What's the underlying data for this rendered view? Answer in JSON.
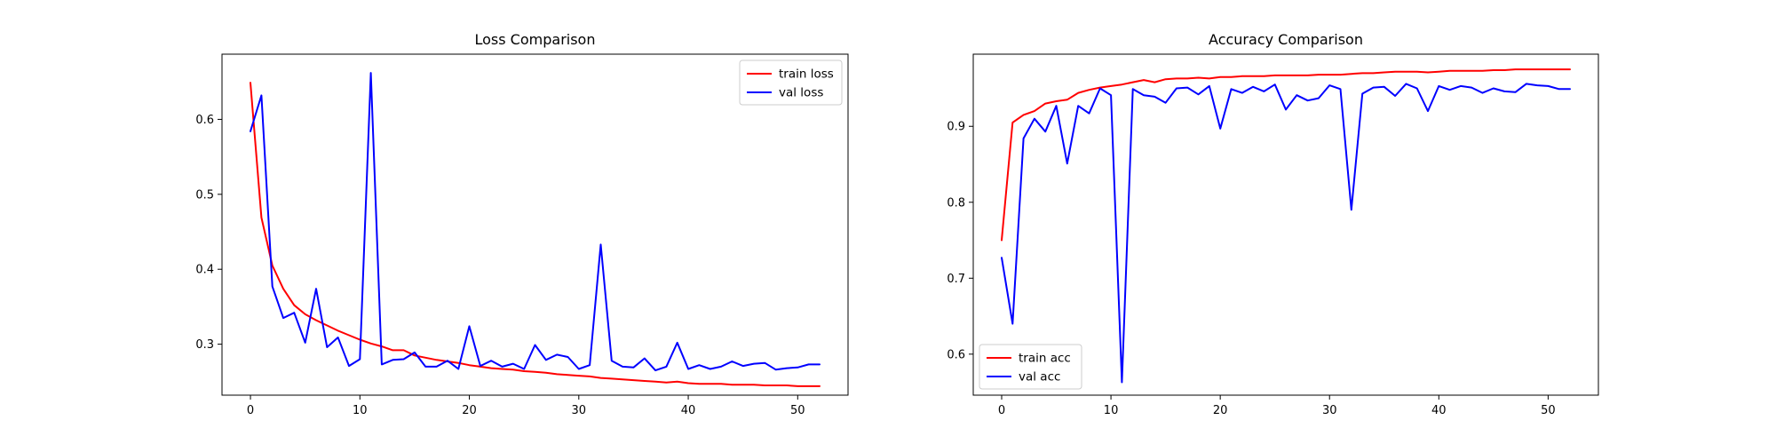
{
  "chart_data": [
    {
      "type": "line",
      "title": "Loss Comparison",
      "xlabel": "",
      "ylabel": "",
      "xlim": [
        -2.6,
        54.6
      ],
      "ylim": [
        0.232,
        0.687
      ],
      "xticks": [
        0,
        10,
        20,
        30,
        40,
        50
      ],
      "yticks": [
        0.3,
        0.4,
        0.5,
        0.6
      ],
      "ytick_decimals": 1,
      "legend_position": "upper right",
      "grid": false,
      "x": [
        0,
        1,
        2,
        3,
        4,
        5,
        6,
        7,
        8,
        9,
        10,
        11,
        12,
        13,
        14,
        15,
        16,
        17,
        18,
        19,
        20,
        21,
        22,
        23,
        24,
        25,
        26,
        27,
        28,
        29,
        30,
        31,
        32,
        33,
        34,
        35,
        36,
        37,
        38,
        39,
        40,
        41,
        42,
        43,
        44,
        45,
        46,
        47,
        48,
        49,
        50,
        51,
        52
      ],
      "series": [
        {
          "name": "train loss",
          "color": "#ff0000",
          "values": [
            0.649,
            0.469,
            0.405,
            0.374,
            0.352,
            0.34,
            0.332,
            0.325,
            0.318,
            0.312,
            0.306,
            0.301,
            0.297,
            0.292,
            0.292,
            0.285,
            0.282,
            0.279,
            0.277,
            0.275,
            0.272,
            0.27,
            0.268,
            0.267,
            0.266,
            0.264,
            0.263,
            0.262,
            0.26,
            0.259,
            0.258,
            0.257,
            0.255,
            0.254,
            0.253,
            0.252,
            0.251,
            0.25,
            0.249,
            0.25,
            0.248,
            0.247,
            0.247,
            0.247,
            0.246,
            0.246,
            0.246,
            0.245,
            0.245,
            0.245,
            0.244,
            0.244,
            0.244
          ]
        },
        {
          "name": "val loss",
          "color": "#0000ff",
          "values": [
            0.584,
            0.632,
            0.377,
            0.335,
            0.342,
            0.302,
            0.374,
            0.296,
            0.309,
            0.271,
            0.28,
            0.662,
            0.273,
            0.279,
            0.28,
            0.289,
            0.27,
            0.27,
            0.278,
            0.267,
            0.324,
            0.271,
            0.278,
            0.27,
            0.274,
            0.267,
            0.299,
            0.279,
            0.286,
            0.283,
            0.267,
            0.272,
            0.433,
            0.278,
            0.27,
            0.269,
            0.281,
            0.265,
            0.27,
            0.302,
            0.267,
            0.272,
            0.267,
            0.27,
            0.277,
            0.271,
            0.274,
            0.275,
            0.266,
            0.268,
            0.269,
            0.273,
            0.273
          ]
        }
      ]
    },
    {
      "type": "line",
      "title": "Accuracy Comparison",
      "xlabel": "",
      "ylabel": "",
      "xlim": [
        -2.6,
        54.6
      ],
      "ylim": [
        0.546,
        0.995
      ],
      "xticks": [
        0,
        10,
        20,
        30,
        40,
        50
      ],
      "yticks": [
        0.6,
        0.7,
        0.8,
        0.9
      ],
      "ytick_decimals": 1,
      "legend_position": "lower left",
      "grid": false,
      "x": [
        0,
        1,
        2,
        3,
        4,
        5,
        6,
        7,
        8,
        9,
        10,
        11,
        12,
        13,
        14,
        15,
        16,
        17,
        18,
        19,
        20,
        21,
        22,
        23,
        24,
        25,
        26,
        27,
        28,
        29,
        30,
        31,
        32,
        33,
        34,
        35,
        36,
        37,
        38,
        39,
        40,
        41,
        42,
        43,
        44,
        45,
        46,
        47,
        48,
        49,
        50,
        51,
        52
      ],
      "series": [
        {
          "name": "train acc",
          "color": "#ff0000",
          "values": [
            0.75,
            0.905,
            0.915,
            0.92,
            0.93,
            0.933,
            0.935,
            0.944,
            0.948,
            0.951,
            0.953,
            0.955,
            0.958,
            0.961,
            0.958,
            0.962,
            0.963,
            0.963,
            0.964,
            0.963,
            0.965,
            0.965,
            0.966,
            0.966,
            0.966,
            0.967,
            0.967,
            0.967,
            0.967,
            0.968,
            0.968,
            0.968,
            0.969,
            0.97,
            0.97,
            0.971,
            0.972,
            0.972,
            0.972,
            0.971,
            0.972,
            0.973,
            0.973,
            0.973,
            0.973,
            0.974,
            0.974,
            0.975,
            0.975,
            0.975,
            0.975,
            0.975,
            0.975
          ]
        },
        {
          "name": "val acc",
          "color": "#0000ff",
          "values": [
            0.727,
            0.64,
            0.884,
            0.91,
            0.893,
            0.927,
            0.851,
            0.927,
            0.917,
            0.95,
            0.941,
            0.563,
            0.949,
            0.941,
            0.939,
            0.931,
            0.95,
            0.951,
            0.942,
            0.953,
            0.897,
            0.949,
            0.944,
            0.952,
            0.946,
            0.955,
            0.922,
            0.941,
            0.934,
            0.937,
            0.954,
            0.949,
            0.79,
            0.943,
            0.951,
            0.952,
            0.94,
            0.956,
            0.95,
            0.92,
            0.953,
            0.948,
            0.953,
            0.951,
            0.944,
            0.95,
            0.946,
            0.945,
            0.956,
            0.954,
            0.953,
            0.949,
            0.949
          ]
        }
      ]
    }
  ]
}
